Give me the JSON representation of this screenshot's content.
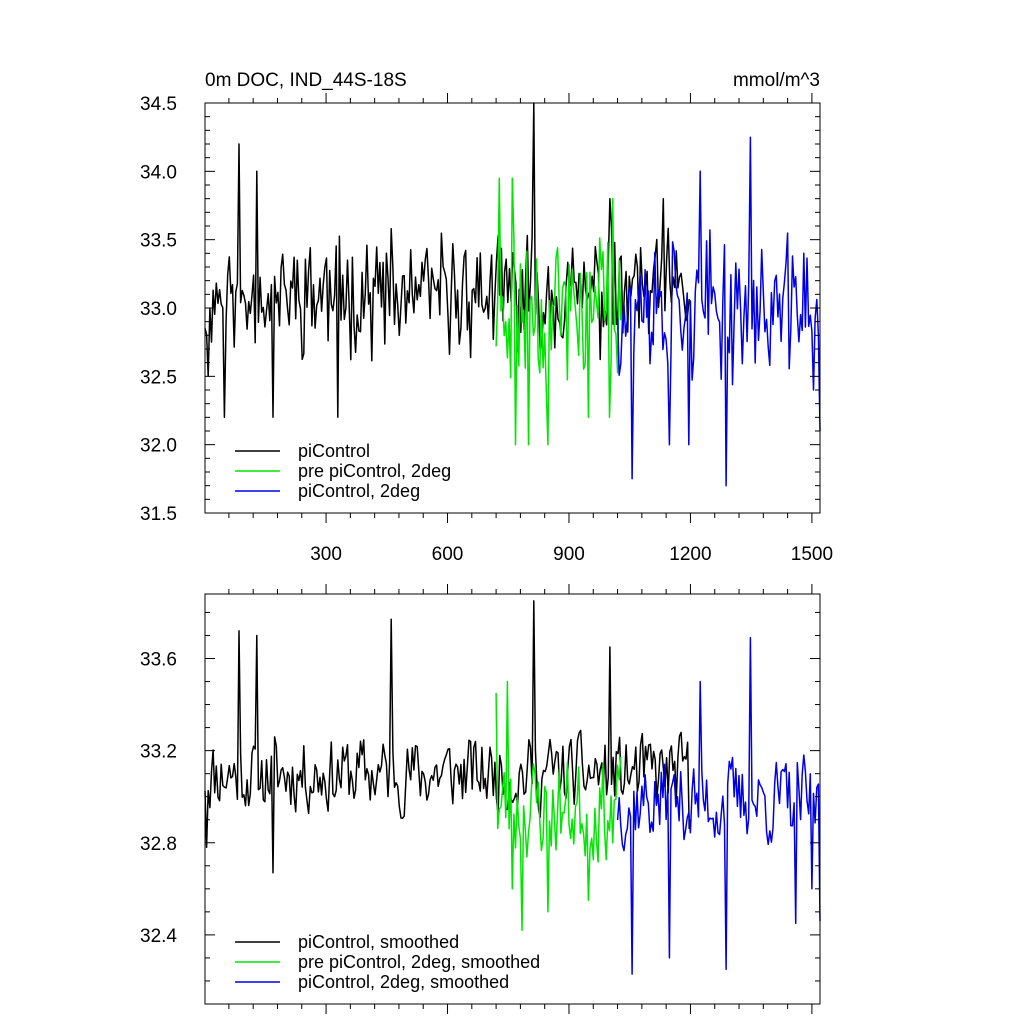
{
  "chart_data": [
    {
      "type": "line",
      "title_left": "0m DOC, IND_44S-18S",
      "title_right": "mmol/m^3",
      "xlim": [
        1,
        1520
      ],
      "ylim": [
        31.5,
        34.5
      ],
      "x_ticks": [
        300,
        600,
        900,
        1200,
        1500
      ],
      "y_ticks": [
        31.5,
        32.0,
        32.5,
        33.0,
        33.5,
        34.0,
        34.5
      ],
      "y_tick_labels": [
        "31.5",
        "32.0",
        "32.5",
        "33.0",
        "33.5",
        "34.0",
        "34.5"
      ],
      "legend": {
        "placement": "bottom-left",
        "entries": [
          {
            "label": "piControl",
            "color": "#000000"
          },
          {
            "label": "pre piControl, 2deg",
            "color": "#00e600"
          },
          {
            "label": "piControl, 2deg",
            "color": "#0000e6"
          }
        ]
      },
      "series": [
        {
          "name": "piControl",
          "color": "#000000",
          "x_start": 1,
          "x_end": 1200,
          "mean": 33.1,
          "amplitude": 0.32,
          "seed": 11,
          "spikes": [
            [
              10,
              32.5
            ],
            [
              50,
              32.2
            ],
            [
              85,
              34.2
            ],
            [
              130,
              34.0
            ],
            [
              170,
              32.2
            ],
            [
              330,
              32.2
            ],
            [
              480,
              32.8
            ],
            [
              815,
              34.5
            ],
            [
              1000,
              33.8
            ],
            [
              1135,
              33.8
            ]
          ]
        },
        {
          "name": "pre piControl, 2deg",
          "color": "#00e600",
          "x_start": 720,
          "x_end": 1030,
          "mean": 33.0,
          "amplitude": 0.45,
          "seed": 23,
          "spikes": [
            [
              730,
              33.95
            ],
            [
              760,
              33.95
            ],
            [
              770,
              32.0
            ],
            [
              800,
              32.0
            ],
            [
              850,
              32.0
            ],
            [
              950,
              32.2
            ],
            [
              1000,
              32.2
            ],
            [
              1010,
              33.8
            ]
          ]
        },
        {
          "name": "piControl, 2deg",
          "color": "#0000e6",
          "x_start": 1020,
          "x_end": 1520,
          "mean": 33.0,
          "amplitude": 0.38,
          "seed": 37,
          "spikes": [
            [
              1055,
              31.75
            ],
            [
              1150,
              32.0
            ],
            [
              1195,
              32.0
            ],
            [
              1225,
              34.0
            ],
            [
              1290,
              31.7
            ],
            [
              1350,
              34.25
            ],
            [
              1480,
              33.4
            ],
            [
              1505,
              32.4
            ],
            [
              1520,
              32.1
            ]
          ]
        }
      ]
    },
    {
      "type": "line",
      "xlim": [
        1,
        1520
      ],
      "ylim": [
        32.1,
        33.88
      ],
      "x_ticks": [
        300,
        600,
        900,
        1200,
        1500
      ],
      "y_ticks": [
        32.4,
        32.8,
        33.2,
        33.6
      ],
      "y_tick_labels": [
        "32.4",
        "32.8",
        "33.2",
        "33.6"
      ],
      "legend": {
        "placement": "bottom-left",
        "entries": [
          {
            "label": "piControl, smoothed",
            "color": "#000000"
          },
          {
            "label": "pre piControl, 2deg, smoothed",
            "color": "#00e600"
          },
          {
            "label": "piControl, 2deg, smoothed",
            "color": "#0000e6"
          }
        ]
      },
      "series": [
        {
          "name": "piControl, smoothed",
          "color": "#000000",
          "x_start": 1,
          "x_end": 1200,
          "mean": 33.1,
          "amplitude": 0.22,
          "seed": 11,
          "spikes": [
            [
              5,
              32.78
            ],
            [
              85,
              33.72
            ],
            [
              130,
              33.7
            ],
            [
              170,
              32.67
            ],
            [
              460,
              33.77
            ],
            [
              815,
              33.85
            ],
            [
              1000,
              33.65
            ],
            [
              1200,
              32.86
            ]
          ]
        },
        {
          "name": "pre piControl, 2deg, smoothed",
          "color": "#00e600",
          "x_start": 720,
          "x_end": 1030,
          "mean": 32.95,
          "amplitude": 0.3,
          "seed": 23,
          "spikes": [
            [
              720,
              33.45
            ],
            [
              750,
              33.5
            ],
            [
              760,
              32.6
            ],
            [
              785,
              32.42
            ],
            [
              850,
              32.5
            ],
            [
              950,
              32.55
            ],
            [
              1010,
              32.8
            ]
          ]
        },
        {
          "name": "piControl, 2deg, smoothed",
          "color": "#0000e6",
          "x_start": 1020,
          "x_end": 1520,
          "mean": 32.98,
          "amplitude": 0.25,
          "seed": 37,
          "spikes": [
            [
              1055,
              32.23
            ],
            [
              1150,
              32.3
            ],
            [
              1225,
              33.5
            ],
            [
              1290,
              32.25
            ],
            [
              1350,
              33.69
            ],
            [
              1460,
              32.45
            ],
            [
              1500,
              32.6
            ],
            [
              1520,
              32.46
            ]
          ]
        }
      ]
    }
  ]
}
